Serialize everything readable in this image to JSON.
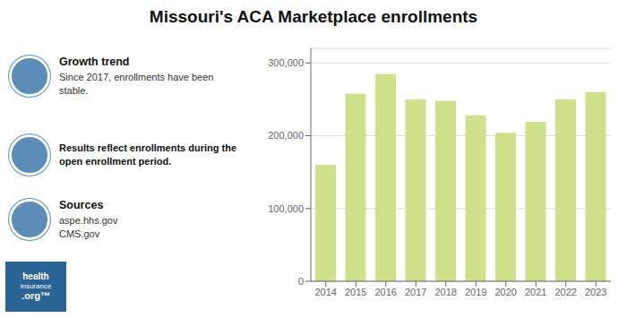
{
  "chart_data": {
    "type": "bar",
    "title": "Missouri's ACA Marketplace enrollments",
    "categories": [
      "2014",
      "2015",
      "2016",
      "2017",
      "2018",
      "2019",
      "2020",
      "2021",
      "2022",
      "2023"
    ],
    "values": [
      160000,
      258000,
      285000,
      250000,
      248000,
      228000,
      204000,
      219000,
      250000,
      260000
    ],
    "color": "#cfe08a",
    "ylim": [
      0,
      320000
    ],
    "yticks": [
      0,
      {
        "value": 100000,
        "label": "100,000"
      },
      {
        "value": 200000,
        "label": "200,000"
      },
      {
        "value": 300000,
        "label": "300,000"
      }
    ],
    "grid": true,
    "annotations": [
      "Growth trend",
      "Since 2017, enrollments have been\nstable.",
      "Results reflect enrollments during the\nopen enrollment period.",
      "Sources",
      "aspe.hhs.gov\nCMS.gov",
      "health",
      "insurance",
      ".org™"
    ]
  }
}
